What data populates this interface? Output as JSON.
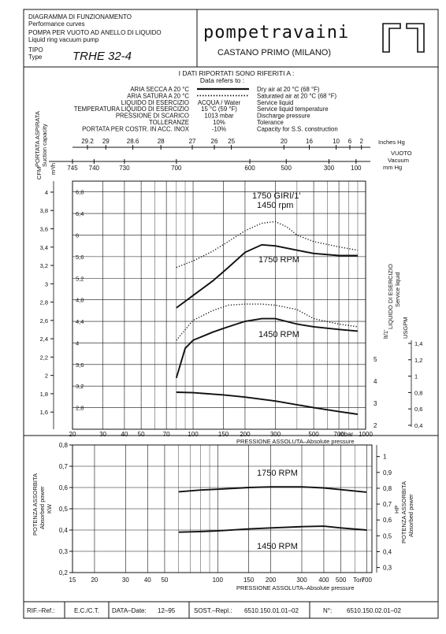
{
  "header": {
    "title_it": "DIAGRAMMA DI FUNZIONAMENTO",
    "title_en": "Performance curves",
    "product_it": "POMPA PER VUOTO AD ANELLO DI LIQUIDO",
    "product_en": "Liquid ring vacuum pump",
    "type_label_it": "TIPO",
    "type_label_en": "Type",
    "type_value": "TRHE 32-4",
    "brand": "pompetravaini",
    "location": "CASTANO PRIMO  (MILANO)"
  },
  "conditions": {
    "heading": "I DATI RIPORTATI SONO RIFERITI A :",
    "subheading": "Data refers to :",
    "rows": [
      {
        "it": "ARIA SECCA A 20 °C",
        "value": "",
        "en": "Dry air at 20 °C (68 °F)",
        "line": "solid"
      },
      {
        "it": "ARIA SATURA A 20 °C",
        "value": "",
        "en": "Saturated air at 20 °C (68 °F)",
        "line": "dotted"
      },
      {
        "it": "LIQUIDO DI ESERCIZIO",
        "value": "ACQUA / Water",
        "en": "Service liquid",
        "line": ""
      },
      {
        "it": "TEMPERATURA LIQUIDO DI ESERCIZIO",
        "value": "15 °C (59 °F)",
        "en": "Service liquid temperature",
        "line": ""
      },
      {
        "it": "PRESSIONE DI SCARICO",
        "value": "1013 mbar",
        "en": "Discharge pressure",
        "line": ""
      },
      {
        "it": "TOLLERANZE",
        "value": "10%",
        "en": "Tolerance",
        "line": ""
      },
      {
        "it": "PORTATA PER COSTR. IN ACC. INOX",
        "value": "-10%",
        "en": "Capacity for S.S. construction",
        "line": ""
      }
    ]
  },
  "scales": {
    "inhg_ticks": [
      "29.2",
      "29",
      "28.6",
      "28",
      "27",
      "26",
      "25",
      "20",
      "16",
      "10",
      "6",
      "2"
    ],
    "inhg_label": "Inches Hg",
    "vuoto_label": "VUOTO",
    "vacuum_label": "Vacuum",
    "mmhg_ticks": [
      "745",
      "740",
      "730",
      "700",
      "600",
      "500",
      "300",
      "100"
    ],
    "mmhg_label": "mm Hg",
    "cfm_label": "CFM",
    "m3h_label": "m³/h",
    "suction_label_it": "PORTATA ASPIRATA",
    "suction_label_en": "Suction capacity",
    "service_label_it": "LIQUIDO DI ESERCIZIO",
    "service_label_en": "Service liquid",
    "service_units": [
      "lt/1'",
      "USGPM"
    ],
    "power_label_it": "POTENZA ASSORBITA",
    "power_label_en": "Absorbed power",
    "kw_label": "KW",
    "hp_label": "HP"
  },
  "chart_data": [
    {
      "type": "line",
      "title": "",
      "speed_note": [
        "1750  GIRI/1'",
        "1450  rpm"
      ],
      "xlabel": "PRESSIONE ASSOLUTA–Absolute pressure",
      "xunit": "mbar",
      "xscale": "log",
      "xlim": [
        20,
        1000
      ],
      "x_ticks": [
        "20",
        "30",
        "40",
        "50",
        "70",
        "100",
        "150",
        "200",
        "300",
        "500",
        "700",
        "1000"
      ],
      "ylabel_left": "m³/h",
      "ylim_left": [
        2.4,
        7.0
      ],
      "left_ticks": [
        "6,8",
        "6,4",
        "6",
        "5,6",
        "5,2",
        "4,8",
        "4,4",
        "4",
        "3,6",
        "3,2",
        "2,8"
      ],
      "cfm_ticks": [
        "4",
        "3,8",
        "3,6",
        "3,4",
        "3,2",
        "3",
        "2,8",
        "2,6",
        "2,4",
        "2,2",
        "2",
        "1,8",
        "1,6"
      ],
      "right_lt_ticks": [
        "5",
        "4",
        "3",
        "2"
      ],
      "right_usgpm_ticks": [
        "1,4",
        "1,2",
        "1",
        "0,8",
        "0,6",
        "0,4"
      ],
      "grid": true,
      "series": [
        {
          "name": "1750 RPM",
          "style": "solid",
          "axis": "m3h",
          "x": [
            80,
            100,
            130,
            160,
            200,
            250,
            300,
            400,
            500,
            700,
            900
          ],
          "y": [
            4.65,
            4.88,
            5.15,
            5.4,
            5.68,
            5.82,
            5.8,
            5.72,
            5.66,
            5.62,
            5.62
          ]
        },
        {
          "name": "",
          "style": "dotted",
          "axis": "m3h",
          "x": [
            80,
            100,
            130,
            160,
            200,
            250,
            300,
            350,
            400,
            500,
            700,
            900
          ],
          "y": [
            5.4,
            5.52,
            5.7,
            5.88,
            6.08,
            6.22,
            6.25,
            6.15,
            6.0,
            5.88,
            5.78,
            5.72
          ]
        },
        {
          "name": "1450 RPM",
          "style": "solid",
          "axis": "m3h",
          "x": [
            80,
            90,
            100,
            130,
            160,
            200,
            250,
            300,
            400,
            500,
            700,
            900
          ],
          "y": [
            3.35,
            3.9,
            4.05,
            4.2,
            4.3,
            4.4,
            4.45,
            4.45,
            4.35,
            4.3,
            4.25,
            4.22
          ]
        },
        {
          "name": "",
          "style": "dotted",
          "axis": "m3h",
          "x": [
            80,
            100,
            130,
            160,
            200,
            250,
            300,
            400,
            500,
            700,
            900
          ],
          "y": [
            4.05,
            4.42,
            4.6,
            4.7,
            4.72,
            4.72,
            4.7,
            4.62,
            4.45,
            4.35,
            4.3
          ]
        },
        {
          "name": "",
          "style": "solid",
          "axis": "service_liquid_lt_min",
          "x": [
            80,
            100,
            150,
            200,
            300,
            500,
            700,
            900
          ],
          "y": [
            3.5,
            3.48,
            3.38,
            3.28,
            3.1,
            2.8,
            2.62,
            2.5
          ]
        }
      ]
    },
    {
      "type": "line",
      "title": "",
      "xlabel": "PRESSIONE ASSOLUTA–Absolute pressure",
      "xunit": "Torr",
      "xscale": "log",
      "xlim": [
        15,
        750
      ],
      "x_ticks": [
        "15",
        "20",
        "30",
        "40",
        "50",
        "100",
        "150",
        "200",
        "300",
        "400",
        "500",
        "700"
      ],
      "ylabel_left": "KW",
      "ylim_left": [
        0.2,
        0.8
      ],
      "left_ticks": [
        "0,8",
        "0,7",
        "0,6",
        "0,5",
        "0,4",
        "0,3",
        "0,2"
      ],
      "right_hp_ticks": [
        "1",
        "0,9",
        "0,8",
        "0,7",
        "0,6",
        "0,5",
        "0,4",
        "0,3"
      ],
      "grid": true,
      "series": [
        {
          "name": "1750 RPM",
          "style": "solid",
          "x": [
            60,
            80,
            100,
            150,
            200,
            300,
            400,
            500,
            700
          ],
          "y": [
            0.58,
            0.588,
            0.592,
            0.6,
            0.603,
            0.603,
            0.598,
            0.59,
            0.578
          ]
        },
        {
          "name": "1450 RPM",
          "style": "solid",
          "x": [
            60,
            80,
            100,
            150,
            200,
            300,
            400,
            500,
            700
          ],
          "y": [
            0.39,
            0.393,
            0.396,
            0.405,
            0.41,
            0.416,
            0.418,
            0.41,
            0.4
          ]
        }
      ]
    }
  ],
  "footer": {
    "rif_label": "RIF.–Ref.:",
    "rif_value": "E.C./C.T.",
    "data_label": "DATA–Date:",
    "data_value": "12–95",
    "sost_label": "SOST.–Repl.:",
    "sost_value": "6510.150.01.01–02",
    "n_label": "N°:",
    "n_value": "6510.150.02.01–02"
  }
}
